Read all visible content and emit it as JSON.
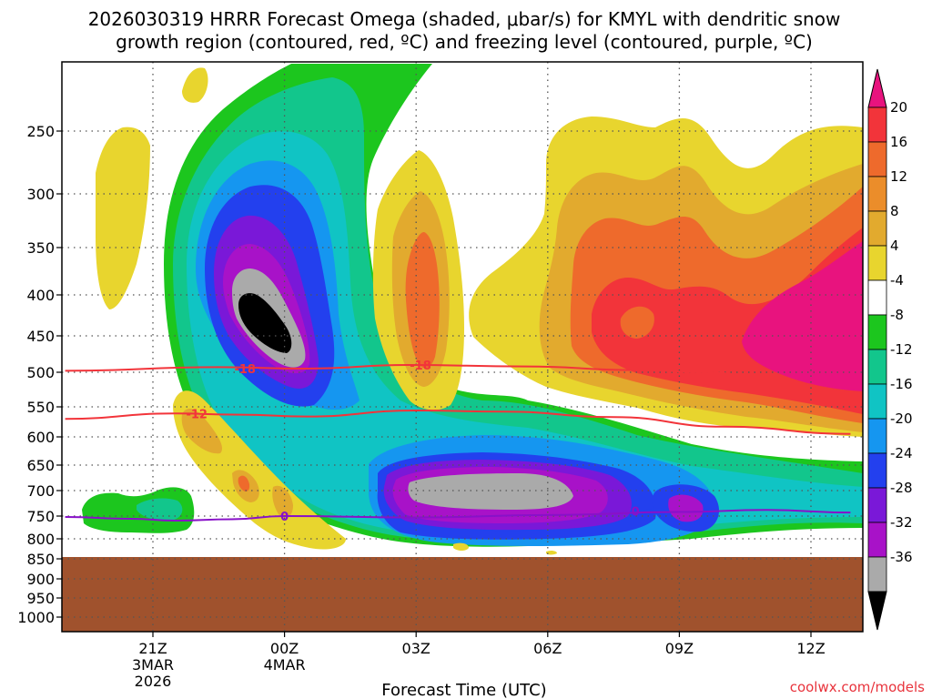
{
  "chart_data": {
    "type": "heatmap",
    "title_line1": "2026030319 HRRR Forecast Omega (shaded, μbar/s) for KMYL with dendritic snow",
    "title_line2": "growth region (contoured, red, ºC) and freezing level (contoured, purple, ºC)",
    "xlabel": "Forecast Time (UTC)",
    "ylabel": "",
    "x_ticks": [
      {
        "label": "21Z",
        "sub1": "3MAR",
        "sub2": "2026",
        "hour": 0
      },
      {
        "label": "00Z",
        "sub1": "4MAR",
        "sub2": "",
        "hour": 3
      },
      {
        "label": "03Z",
        "sub1": "",
        "sub2": "",
        "hour": 6
      },
      {
        "label": "06Z",
        "sub1": "",
        "sub2": "",
        "hour": 9
      },
      {
        "label": "09Z",
        "sub1": "",
        "sub2": "",
        "hour": 12
      },
      {
        "label": "12Z",
        "sub1": "",
        "sub2": "",
        "hour": 15
      }
    ],
    "xlim": [
      -2,
      15.9
    ],
    "y_ticks": [
      250,
      300,
      350,
      400,
      450,
      500,
      550,
      600,
      650,
      700,
      750,
      800,
      850,
      900,
      950,
      1000
    ],
    "ylim_hpa": [
      1050,
      200
    ],
    "surface_pressure_hpa": 850,
    "colorbar": {
      "labels": [
        "20",
        "16",
        "12",
        "8",
        "4",
        "-4",
        "-8",
        "-12",
        "-16",
        "-20",
        "-24",
        "-28",
        "-32",
        "-36"
      ],
      "bins": [
        {
          "range": ">20",
          "color": "#e8137e"
        },
        {
          "range": "16 to 20",
          "color": "#f2343a"
        },
        {
          "range": "12 to 16",
          "color": "#ee6a2c"
        },
        {
          "range": "8 to 12",
          "color": "#eb8d2a"
        },
        {
          "range": "4 to 8",
          "color": "#e2aa2e"
        },
        {
          "range": "0 to 4",
          "color": "#e8d52e"
        },
        {
          "range": "-4 to 0",
          "color": "#ffffff"
        },
        {
          "range": "-8 to -4",
          "color": "#1cc61e"
        },
        {
          "range": "-12 to -8",
          "color": "#12c68c"
        },
        {
          "range": "-16 to -12",
          "color": "#10c4c4"
        },
        {
          "range": "-20 to -16",
          "color": "#1596f0"
        },
        {
          "range": "-24 to -20",
          "color": "#2340ee"
        },
        {
          "range": "-28 to -24",
          "color": "#7a18d8"
        },
        {
          "range": "-32 to -28",
          "color": "#a812c8"
        },
        {
          "range": "-36 to -32",
          "color": "#aaaaaa"
        },
        {
          "range": "<-36",
          "color": "#000000"
        }
      ]
    },
    "contours": [
      {
        "name": "dgz-minus18",
        "value": -18,
        "label": "-18",
        "color": "#f2343a",
        "points": [
          [
            -2,
            498
          ],
          [
            1.5,
            493
          ],
          [
            3.5,
            495
          ],
          [
            5.8,
            490
          ],
          [
            8.5,
            492
          ],
          [
            11,
            497
          ],
          [
            12.7,
            500
          ],
          [
            13.6,
            505
          ]
        ],
        "label_at": [
          [
            2.1,
            495
          ],
          [
            6.1,
            490
          ]
        ]
      },
      {
        "name": "dgz-minus12",
        "value": -12,
        "label": "-12",
        "color": "#f2343a",
        "points": [
          [
            -2,
            570
          ],
          [
            0.5,
            561
          ],
          [
            2,
            563
          ],
          [
            3.5,
            566
          ],
          [
            6,
            556
          ],
          [
            8,
            558
          ],
          [
            10.5,
            567
          ],
          [
            13,
            583
          ],
          [
            15.9,
            595
          ]
        ],
        "label_at": [
          [
            1,
            561
          ]
        ]
      },
      {
        "name": "freezing-level",
        "value": 0,
        "label": "0",
        "color": "#8811c8",
        "points": [
          [
            -2,
            752
          ],
          [
            -0.5,
            756
          ],
          [
            0.5,
            760
          ],
          [
            1.8,
            757
          ],
          [
            3,
            750
          ],
          [
            6,
            753
          ],
          [
            9,
            748
          ],
          [
            12,
            742
          ],
          [
            14,
            738
          ],
          [
            15.9,
            743
          ]
        ],
        "label_at": [
          [
            3,
            750
          ],
          [
            11,
            740
          ]
        ]
      }
    ]
  },
  "watermark": "coolwx.com/models"
}
